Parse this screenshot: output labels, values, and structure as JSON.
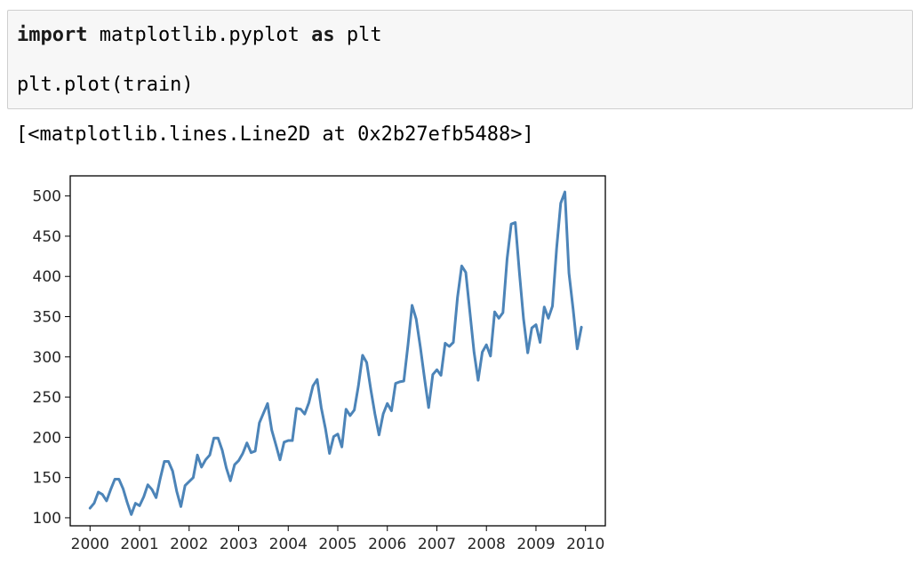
{
  "cell": {
    "line1": {
      "kw_import": "import",
      "module": " matplotlib.pyplot ",
      "kw_as": "as",
      "alias": " plt"
    },
    "line3": "plt.plot(train)"
  },
  "output": {
    "repr": "[<matplotlib.lines.Line2D at 0x2b27efb5488>]"
  },
  "colors": {
    "line": "#4c84b8",
    "axes": "#000000"
  },
  "chart_data": {
    "type": "line",
    "title": "",
    "xlabel": "",
    "ylabel": "",
    "xlim": [
      1999.6,
      2010.4
    ],
    "ylim": [
      90,
      525
    ],
    "grid": false,
    "legend": "none",
    "xticks": [
      2000,
      2001,
      2002,
      2003,
      2004,
      2005,
      2006,
      2007,
      2008,
      2009,
      2010
    ],
    "xtick_labels": [
      "2000",
      "2001",
      "2002",
      "2003",
      "2004",
      "2005",
      "2006",
      "2007",
      "2008",
      "2009",
      "2010"
    ],
    "yticks": [
      100,
      150,
      200,
      250,
      300,
      350,
      400,
      450,
      500
    ],
    "ytick_labels": [
      "100",
      "150",
      "200",
      "250",
      "300",
      "350",
      "400",
      "450",
      "500"
    ],
    "series": [
      {
        "x": [
          2000.0,
          2000.083,
          2000.167,
          2000.25,
          2000.333,
          2000.417,
          2000.5,
          2000.583,
          2000.667,
          2000.75,
          2000.833,
          2000.917,
          2001.0,
          2001.083,
          2001.167,
          2001.25,
          2001.333,
          2001.417,
          2001.5,
          2001.583,
          2001.667,
          2001.75,
          2001.833,
          2001.917,
          2002.0,
          2002.083,
          2002.167,
          2002.25,
          2002.333,
          2002.417,
          2002.5,
          2002.583,
          2002.667,
          2002.75,
          2002.833,
          2002.917,
          2003.0,
          2003.083,
          2003.167,
          2003.25,
          2003.333,
          2003.417,
          2003.5,
          2003.583,
          2003.667,
          2003.75,
          2003.833,
          2003.917,
          2004.0,
          2004.083,
          2004.167,
          2004.25,
          2004.333,
          2004.417,
          2004.5,
          2004.583,
          2004.667,
          2004.75,
          2004.833,
          2004.917,
          2005.0,
          2005.083,
          2005.167,
          2005.25,
          2005.333,
          2005.417,
          2005.5,
          2005.583,
          2005.667,
          2005.75,
          2005.833,
          2005.917,
          2006.0,
          2006.083,
          2006.167,
          2006.25,
          2006.333,
          2006.417,
          2006.5,
          2006.583,
          2006.667,
          2006.75,
          2006.833,
          2006.917,
          2007.0,
          2007.083,
          2007.167,
          2007.25,
          2007.333,
          2007.417,
          2007.5,
          2007.583,
          2007.667,
          2007.75,
          2007.833,
          2007.917,
          2008.0,
          2008.083,
          2008.167,
          2008.25,
          2008.333,
          2008.417,
          2008.5,
          2008.583,
          2008.667,
          2008.75,
          2008.833,
          2008.917,
          2009.0,
          2009.083,
          2009.167,
          2009.25,
          2009.333,
          2009.417,
          2009.5,
          2009.583,
          2009.667,
          2009.75,
          2009.833,
          2009.917
        ],
        "y": [
          112,
          118,
          132,
          129,
          121,
          135,
          148,
          148,
          136,
          119,
          104,
          118,
          115,
          126,
          141,
          135,
          125,
          149,
          170,
          170,
          158,
          133,
          114,
          140,
          145,
          150,
          178,
          163,
          172,
          178,
          199,
          199,
          184,
          162,
          146,
          166,
          171,
          180,
          193,
          181,
          183,
          218,
          230,
          242,
          209,
          191,
          172,
          194,
          196,
          196,
          236,
          235,
          229,
          243,
          264,
          272,
          237,
          211,
          180,
          201,
          204,
          188,
          235,
          227,
          234,
          264,
          302,
          293,
          259,
          229,
          203,
          229,
          242,
          233,
          267,
          269,
          270,
          315,
          364,
          347,
          312,
          274,
          237,
          278,
          284,
          277,
          317,
          313,
          318,
          374,
          413,
          405,
          355,
          306,
          271,
          306,
          315,
          301,
          356,
          348,
          355,
          422,
          465,
          467,
          404,
          347,
          305,
          336,
          340,
          318,
          362,
          348,
          363,
          435,
          491,
          505,
          404,
          359,
          310,
          337
        ]
      }
    ]
  }
}
